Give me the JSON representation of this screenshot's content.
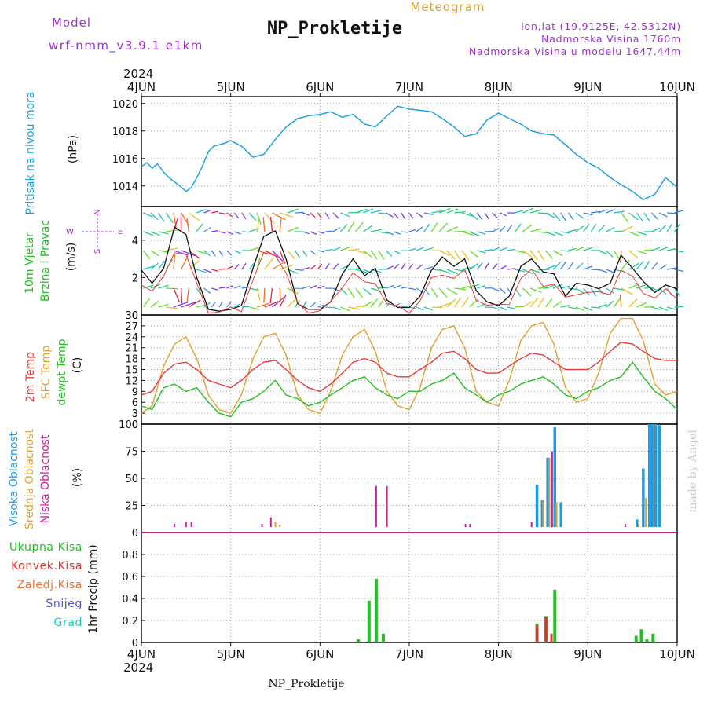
{
  "header": {
    "model_label": "Model",
    "model_name": "wrf-nmm_v3.9.1  e1km",
    "title": "NP_Prokletije",
    "meteogram": "Meteogram",
    "lonlat": "lon,lat (19.9125E, 42.5312N)",
    "elevation": "Nadmorska Visina 1760m",
    "model_elevation": "Nadmorska Visina u modelu 1647.44m",
    "year_top": "2024",
    "year_bottom": "2024",
    "footer": "NP_Prokletije",
    "watermark": "made by Angel"
  },
  "colors": {
    "pressure": "#1fa0e0",
    "temp2m": "#e83b3b",
    "sfc": "#e0a030",
    "dewpt": "#22c022",
    "purple": "#a030d0",
    "high": "#1a9ce8",
    "mid": "#e0a030",
    "low": "#d0209a",
    "rain": "#22c022",
    "conv": "#e03030",
    "snow": "#5050e0",
    "grad": "#20c8c8",
    "ice": "#f07030"
  },
  "chart_data": [
    {
      "type": "line",
      "panel": "pressure",
      "labels": [
        "Pritisak na nivou mora",
        "(hPa)"
      ],
      "x_ticks": [
        "4JUN",
        "5JUN",
        "6JUN",
        "7JUN",
        "8JUN",
        "9JUN",
        "10JUN"
      ],
      "ylim": [
        1012.5,
        1020.5
      ],
      "y_ticks": [
        "1014",
        "1016",
        "1018",
        "1020"
      ],
      "series": [
        {
          "x": [
            0,
            0.06,
            0.12,
            0.18,
            0.25,
            0.31,
            0.37,
            0.43,
            0.5,
            0.56,
            0.62,
            0.68,
            0.75,
            0.81,
            0.87,
            0.93,
            1.0,
            1.12,
            1.25,
            1.37,
            1.5,
            1.62,
            1.75,
            1.87,
            2.0,
            2.12,
            2.25,
            2.37,
            2.5,
            2.62,
            2.75,
            2.87,
            3.0,
            3.12,
            3.25,
            3.37,
            3.5,
            3.62,
            3.75,
            3.87,
            4.0,
            4.12,
            4.25,
            4.37,
            4.5,
            4.62,
            4.75,
            4.87,
            5.0,
            5.12,
            5.25,
            5.37,
            5.5,
            5.62,
            5.75,
            5.87,
            6.0
          ],
          "values": [
            1015.4,
            1015.7,
            1015.3,
            1015.6,
            1015.0,
            1014.6,
            1014.3,
            1014.0,
            1013.6,
            1013.9,
            1014.6,
            1015.4,
            1016.5,
            1016.9,
            1017.0,
            1017.1,
            1017.3,
            1016.9,
            1016.1,
            1016.3,
            1017.4,
            1018.3,
            1018.9,
            1019.1,
            1019.2,
            1019.4,
            1019.0,
            1019.2,
            1018.5,
            1018.3,
            1019.1,
            1019.8,
            1019.6,
            1019.5,
            1019.4,
            1018.9,
            1018.3,
            1017.6,
            1017.8,
            1018.8,
            1019.3,
            1018.9,
            1018.5,
            1018.0,
            1017.8,
            1017.7,
            1017.0,
            1016.3,
            1015.7,
            1015.3,
            1014.6,
            1014.1,
            1013.6,
            1013.0,
            1013.4,
            1014.6,
            1013.9
          ]
        }
      ]
    },
    {
      "type": "line",
      "panel": "wind",
      "labels": [
        "10m Vjetar",
        "Brzina i Pravac",
        "(m/s)"
      ],
      "compass": [
        "N",
        "E",
        "W",
        "S"
      ],
      "ylim": [
        0,
        5.8
      ],
      "y_ticks": [
        "0",
        "2",
        "4"
      ],
      "series": [
        {
          "x": [
            0,
            0.12,
            0.25,
            0.37,
            0.5,
            0.62,
            0.75,
            0.87,
            1.0,
            1.12,
            1.25,
            1.37,
            1.5,
            1.62,
            1.75,
            1.87,
            2.0,
            2.12,
            2.25,
            2.37,
            2.5,
            2.62,
            2.75,
            2.87,
            3.0,
            3.12,
            3.25,
            3.37,
            3.5,
            3.62,
            3.75,
            3.87,
            4.0,
            4.12,
            4.25,
            4.37,
            4.5,
            4.62,
            4.75,
            4.87,
            5.0,
            5.12,
            5.25,
            5.37,
            5.5,
            5.62,
            5.75,
            5.87,
            6.0
          ],
          "values": [
            2.4,
            1.7,
            2.5,
            4.7,
            4.3,
            2.0,
            0.3,
            0.2,
            0.3,
            0.5,
            2.5,
            4.2,
            4.5,
            3.0,
            0.6,
            0.3,
            0.3,
            0.7,
            2.2,
            3.0,
            2.1,
            2.5,
            0.8,
            0.4,
            0.4,
            1.0,
            2.4,
            3.1,
            2.6,
            3.0,
            1.3,
            0.7,
            0.5,
            1.0,
            2.6,
            3.0,
            2.3,
            2.2,
            1.0,
            1.7,
            1.6,
            1.4,
            1.7,
            3.2,
            2.5,
            1.8,
            1.2,
            1.6,
            1.4
          ]
        }
      ]
    },
    {
      "type": "line",
      "panel": "temperature",
      "labels": [
        "2m Temp",
        "SFC Temp",
        "dewpt Temp",
        "(C)"
      ],
      "ylim": [
        0,
        30
      ],
      "y_ticks": [
        "0",
        "3",
        "6",
        "9",
        "12",
        "15",
        "18",
        "21",
        "24",
        "27",
        "30"
      ],
      "x": [
        0,
        0.12,
        0.25,
        0.37,
        0.5,
        0.62,
        0.75,
        0.87,
        1.0,
        1.12,
        1.25,
        1.37,
        1.5,
        1.62,
        1.75,
        1.87,
        2.0,
        2.12,
        2.25,
        2.37,
        2.5,
        2.62,
        2.75,
        2.87,
        3.0,
        3.12,
        3.25,
        3.37,
        3.5,
        3.62,
        3.75,
        3.87,
        4.0,
        4.12,
        4.25,
        4.37,
        4.5,
        4.62,
        4.75,
        4.87,
        5.0,
        5.12,
        5.25,
        5.37,
        5.5,
        5.62,
        5.75,
        5.87,
        6.0
      ],
      "series": [
        {
          "name": "2m Temp",
          "values": [
            8,
            9,
            14,
            16.5,
            17,
            15,
            12,
            11,
            10,
            12,
            15,
            17,
            17.5,
            15,
            12,
            10,
            9,
            11,
            14,
            17,
            18,
            17,
            14,
            13,
            13,
            15,
            17,
            19.5,
            20,
            18,
            15,
            14,
            14,
            16,
            18,
            19.5,
            19,
            17,
            15,
            15,
            15,
            17,
            20,
            22.5,
            22,
            20,
            18,
            17.5,
            17.5
          ]
        },
        {
          "name": "SFC Temp",
          "values": [
            3,
            5,
            16,
            22,
            24,
            18,
            8,
            4,
            3,
            8,
            18,
            24,
            25,
            19,
            8,
            4,
            3,
            9,
            19,
            24,
            26,
            20,
            9,
            5,
            4,
            10,
            21,
            26,
            27,
            21,
            9,
            6,
            5,
            12,
            23,
            27,
            28,
            22,
            10,
            6,
            7,
            14,
            25,
            29,
            29,
            23,
            11,
            8,
            9
          ]
        },
        {
          "name": "dewpt Temp",
          "values": [
            5,
            4,
            10,
            11,
            9,
            10,
            6,
            3,
            2,
            6,
            7,
            9,
            12,
            8,
            7,
            5,
            6,
            8,
            10,
            12,
            13,
            10,
            8,
            7,
            9,
            9,
            11,
            12,
            14,
            10,
            8,
            6,
            8,
            9,
            11,
            12,
            13,
            11,
            8,
            7,
            9,
            10,
            12,
            13,
            17,
            13,
            9,
            7,
            4
          ]
        }
      ]
    },
    {
      "type": "bar",
      "panel": "cloud",
      "labels": [
        "Visoka Oblacnost",
        "Srednja Oblacnost",
        "Niska Oblacnost",
        "(%)"
      ],
      "ylim": [
        0,
        100
      ],
      "y_ticks": [
        "0",
        "25",
        "50",
        "75",
        "100"
      ],
      "series": [
        {
          "name": "Visoka Oblacnost",
          "x": [
            4.43,
            4.49,
            4.55,
            4.63,
            4.7,
            5.55,
            5.62,
            5.69,
            5.72,
            5.76,
            5.8
          ],
          "values": [
            44,
            30,
            69,
            97,
            28,
            12,
            59,
            100,
            100,
            100,
            99
          ]
        },
        {
          "name": "Srednja Oblacnost",
          "x": [
            1.5,
            1.55,
            1.62,
            4.5,
            4.57,
            4.65,
            5.57,
            5.65
          ],
          "values": [
            10,
            7,
            4,
            30,
            69,
            28,
            8,
            32
          ]
        },
        {
          "name": "Niska Oblacnost",
          "x": [
            0.37,
            0.5,
            0.56,
            1.35,
            1.45,
            2.43,
            2.63,
            2.75,
            3.2,
            3.43,
            3.63,
            3.68,
            4.25,
            4.37,
            4.6,
            5.37,
            5.42,
            5.9
          ],
          "values": [
            8,
            10,
            10,
            8,
            14,
            3,
            43,
            43,
            3,
            3,
            8,
            8,
            5,
            10,
            75,
            5,
            8,
            5
          ]
        }
      ]
    },
    {
      "type": "bar",
      "panel": "precip",
      "labels": [
        "Ukupna Kisa",
        "Konvek.Kisa",
        "Zaledj.Kisa",
        "Snijeg",
        "Grad",
        "1hr Precip (mm)"
      ],
      "ylim": [
        0,
        1.0
      ],
      "y_ticks": [
        "0",
        "0.2",
        "0.4",
        "0.6",
        "0.8"
      ],
      "x_ticks": [
        "4JUN",
        "5JUN",
        "6JUN",
        "7JUN",
        "8JUN",
        "9JUN",
        "10JUN"
      ],
      "series": [
        {
          "name": "Ukupna Kisa",
          "x": [
            2.43,
            2.55,
            2.63,
            2.71,
            4.43,
            4.53,
            4.63,
            5.54,
            5.6,
            5.66,
            5.73
          ],
          "values": [
            0.03,
            0.38,
            0.58,
            0.08,
            0.17,
            0.24,
            0.48,
            0.06,
            0.12,
            0.03,
            0.08
          ]
        },
        {
          "name": "Konvek.Kisa",
          "x": [
            4.45,
            4.55,
            4.61
          ],
          "values": [
            0.16,
            0.23,
            0.08
          ]
        }
      ]
    }
  ]
}
